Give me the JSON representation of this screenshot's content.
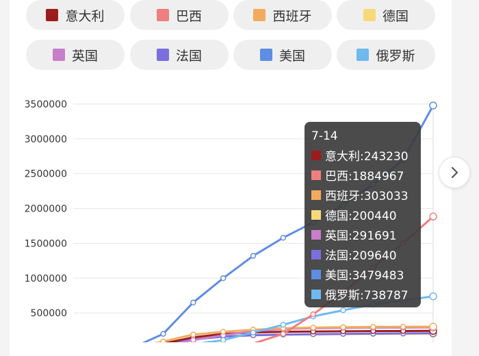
{
  "legend": [
    {
      "name": "意大利",
      "color": "#9b1c1c"
    },
    {
      "name": "巴西",
      "color": "#ef7f7f"
    },
    {
      "name": "西班牙",
      "color": "#f2ab5e"
    },
    {
      "name": "德国",
      "color": "#f8d97a"
    },
    {
      "name": "英国",
      "color": "#c77fc9"
    },
    {
      "name": "法国",
      "color": "#7b6fde"
    },
    {
      "name": "美国",
      "color": "#5f8de2"
    },
    {
      "name": "俄罗斯",
      "color": "#6fb8f0"
    }
  ],
  "tooltip": {
    "title": "7-14",
    "rows": [
      {
        "label": "意大利:243230",
        "color": "#9b1c1c"
      },
      {
        "label": "巴西:1884967",
        "color": "#ef7f7f"
      },
      {
        "label": "西班牙:303033",
        "color": "#f2ab5e"
      },
      {
        "label": "德国:200440",
        "color": "#f8d97a"
      },
      {
        "label": "英国:291691",
        "color": "#c77fc9"
      },
      {
        "label": "法国:209640",
        "color": "#7b6fde"
      },
      {
        "label": "美国:3479483",
        "color": "#5f8de2"
      },
      {
        "label": "俄罗斯:738787",
        "color": "#6fb8f0"
      }
    ]
  },
  "chart_data": {
    "type": "line",
    "y_ticks": [
      "3500000",
      "3000000",
      "2500000",
      "2000000",
      "1500000",
      "1000000",
      "500000"
    ],
    "ylim": [
      0,
      3500000
    ],
    "grid": true,
    "legend_position": "top",
    "series": [
      {
        "name": "意大利",
        "color": "#9b1c1c",
        "values": [
          0,
          0,
          5000,
          60000,
          150000,
          200000,
          220000,
          230000,
          234000,
          237000,
          240000,
          241000,
          243230
        ]
      },
      {
        "name": "巴西",
        "color": "#ef7f7f",
        "values": [
          0,
          0,
          0,
          0,
          1000,
          10000,
          60000,
          200000,
          480000,
          800000,
          1150000,
          1500000,
          1884967
        ]
      },
      {
        "name": "西班牙",
        "color": "#f2ab5e",
        "values": [
          0,
          0,
          6000,
          90000,
          190000,
          230000,
          260000,
          280000,
          290000,
          296000,
          300000,
          302000,
          303033
        ]
      },
      {
        "name": "德国",
        "color": "#f8d97a",
        "values": [
          0,
          0,
          3000,
          60000,
          140000,
          165000,
          180000,
          188000,
          193000,
          196000,
          198000,
          199000,
          200440
        ]
      },
      {
        "name": "英国",
        "color": "#c77fc9",
        "values": [
          0,
          0,
          1000,
          25000,
          110000,
          180000,
          240000,
          270000,
          280000,
          286000,
          289000,
          290000,
          291691
        ]
      },
      {
        "name": "法国",
        "color": "#7b6fde",
        "values": [
          0,
          0,
          2000,
          40000,
          120000,
          160000,
          180000,
          190000,
          195000,
          200000,
          203000,
          206000,
          209640
        ]
      },
      {
        "name": "美国",
        "color": "#5f8de2",
        "values": [
          0,
          0,
          5000,
          200000,
          650000,
          1000000,
          1320000,
          1580000,
          1800000,
          2050000,
          2350000,
          2700000,
          3479483
        ]
      },
      {
        "name": "俄罗斯",
        "color": "#6fb8f0",
        "values": [
          0,
          0,
          1000,
          5000,
          50000,
          110000,
          220000,
          330000,
          450000,
          540000,
          620000,
          680000,
          738787
        ]
      }
    ]
  }
}
